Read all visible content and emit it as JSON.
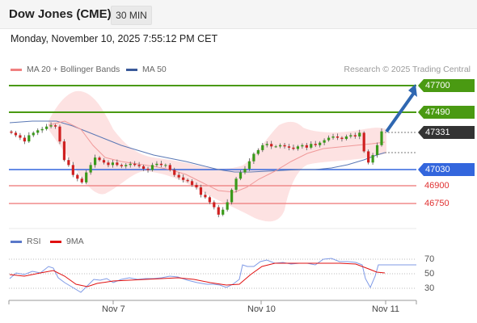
{
  "header": {
    "title": "Dow Jones (CME)",
    "timeframe": "30 MIN"
  },
  "timestamp": "Monday, November 10, 2025 7:55:12 PM CET",
  "legend": {
    "ma20_bb": "MA 20 + Bollinger Bands",
    "ma50": "MA 50",
    "research": "Research © 2025 Trading Central",
    "rsi": "RSI",
    "rsi_ma": "9MA"
  },
  "colors": {
    "green": "#4a9a12",
    "blue": "#3366dd",
    "red": "#f07070",
    "dark": "#333333",
    "bb_fill": "#fde0e0",
    "arrow": "#2f67b1",
    "rsi_blue": "#7f9ae6",
    "rsi_red": "#e01010"
  },
  "levels": {
    "r2": "47700",
    "r1": "47490",
    "last": "47331",
    "pivot": "47030",
    "s1": "46900",
    "s2": "46750"
  },
  "rsi_ticks": [
    "70",
    "50",
    "30"
  ],
  "x_labels": [
    "Nov 7",
    "Nov 10",
    "Nov 11"
  ],
  "chart_data": {
    "type": "candlestick",
    "instrument": "Dow Jones (CME)",
    "interval": "30 MIN",
    "price_levels": [
      47700,
      47490,
      47331,
      47030,
      46900,
      46750
    ],
    "rsi_scale": [
      30,
      50,
      70
    ],
    "close_series": [
      47320,
      47300,
      47280,
      47250,
      47300,
      47320,
      47340,
      47350,
      47370,
      47380,
      47370,
      47250,
      47100,
      47060,
      46980,
      46950,
      46920,
      47000,
      47060,
      47120,
      47100,
      47080,
      47060,
      47080,
      47060,
      47050,
      47060,
      47070,
      47060,
      47050,
      47030,
      47020,
      47060,
      47070,
      47060,
      47060,
      47020,
      46980,
      46960,
      46940,
      46930,
      46900,
      46880,
      46820,
      46800,
      46760,
      46720,
      46660,
      46700,
      46760,
      46860,
      46950,
      47000,
      47030,
      47090,
      47150,
      47180,
      47220,
      47230,
      47210,
      47210,
      47220,
      47210,
      47200,
      47190,
      47210,
      47220,
      47200,
      47230,
      47220,
      47240,
      47260,
      47280,
      47290,
      47280,
      47270,
      47290,
      47300,
      47290,
      47320,
      47170,
      47080,
      47140,
      47220,
      47331
    ],
    "ma20": [
      47330,
      47320,
      47310,
      47300,
      47290,
      47280,
      47270,
      47255,
      47240,
      47220,
      47200,
      47180,
      47160,
      47140,
      47120,
      47100,
      47080,
      47060,
      47050,
      47040,
      47030,
      47020,
      47010,
      47000,
      46990,
      46980,
      46970,
      46960,
      46950,
      46940,
      46935,
      46930,
      46940,
      46960,
      46990,
      47020,
      47060,
      47100,
      47130,
      47150,
      47170,
      47190,
      47200,
      47210,
      47220,
      47230,
      47240,
      47250,
      47250,
      47240,
      47220
    ],
    "ma50": [
      47290,
      47290,
      47280,
      47260,
      47240,
      47220,
      47200,
      47180,
      47160,
      47140,
      47120,
      47100,
      47090,
      47080,
      47070,
      47060,
      47050,
      47040,
      47030,
      47020,
      47010,
      47000,
      46990,
      46980,
      46970,
      46965,
      46960,
      46960,
      46965,
      46970,
      46980,
      46990,
      47000,
      47010,
      47020,
      47030,
      47040,
      47040,
      47050,
      47060,
      47080,
      47100,
      47120
    ]
  }
}
